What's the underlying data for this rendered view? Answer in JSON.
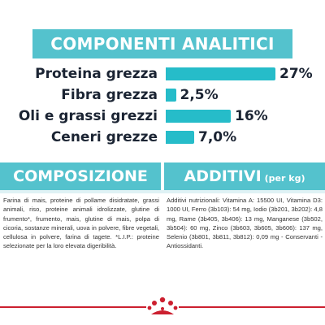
{
  "analytic": {
    "title": "COMPONENTI ANALITICI",
    "rows": [
      {
        "label": "Proteina grezza",
        "value": "27%",
        "percent": 27
      },
      {
        "label": "Fibra grezza",
        "value": "2,5%",
        "percent": 2.5
      },
      {
        "label": "Oli e grassi grezzi",
        "value": "16%",
        "percent": 16
      },
      {
        "label": "Ceneri grezze",
        "value": "7,0%",
        "percent": 7.0
      }
    ]
  },
  "composition": {
    "title": "COMPOSIZIONE",
    "text": "Farina di mais, proteine di pollame disidratate, grassi animali, riso, proteine animali idrolizzate, glutine di frumento*, frumento, mais, glutine di mais, polpa di cicoria, sostanze minerali, uova in polvere, fibre vegetali, cellulosa in polvere, farina di tagete. *L.I.P.: proteine selezionate per la loro elevata digeribilità."
  },
  "additives": {
    "title": "ADDITIVI",
    "title_suffix": "(per kg)",
    "text": "Additivi nutrizionali: Vitamina A: 15500 UI, Vitamina D3: 1000 UI, Ferro (3b103): 54 mg, Iodio (3b201, 3b202): 4,8 mg, Rame (3b405, 3b406): 13 mg, Manganese (3b502, 3b504): 60 mg, Zinco (3b603, 3b605, 3b606): 137 mg, Selenio (3b801, 3b811, 3b812): 0,09 mg - Conservanti - Antiossidanti."
  },
  "brand": {
    "logo_icon": "royal-canin-crown-logo",
    "accent_color": "#cc1f2f",
    "primary_color": "#54c2cd",
    "bar_color": "#26bcc9"
  }
}
